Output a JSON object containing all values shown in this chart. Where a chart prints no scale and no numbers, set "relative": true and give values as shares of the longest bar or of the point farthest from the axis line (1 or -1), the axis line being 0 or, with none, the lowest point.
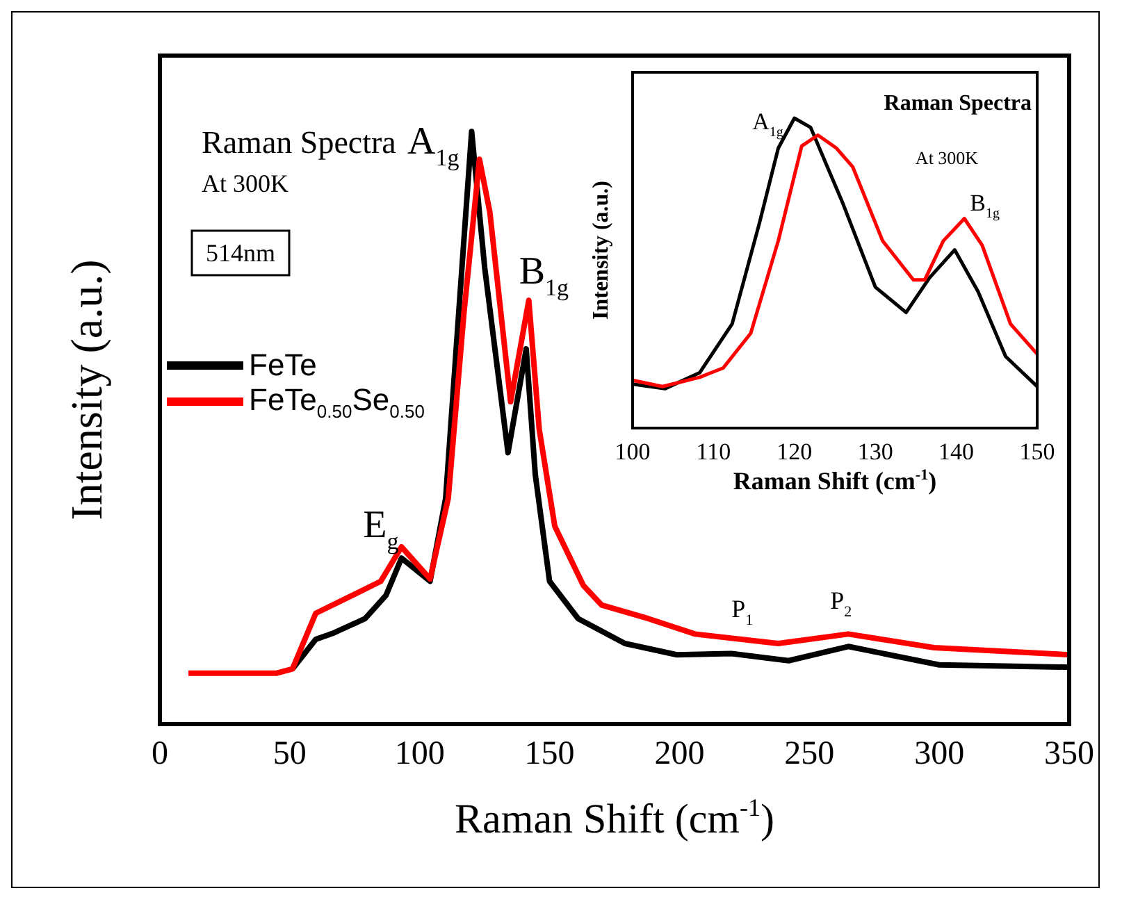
{
  "chart_data": [
    {
      "type": "line",
      "relative": true,
      "xlabel": "Raman Shift (cm$^{-1}$)",
      "ylabel": "Intensity (a.u.)",
      "xlim": [
        0,
        350
      ],
      "xticks": [
        0,
        50,
        100,
        150,
        200,
        250,
        300,
        350
      ],
      "legend": "left",
      "annotations": [
        "Raman Spectra",
        "At 300K",
        "514nm",
        {
          "text": "A$_{1g}$",
          "x": 120,
          "y": 1
        },
        {
          "text": "B$_{1g}$",
          "x": 142,
          "y": 0.715
        },
        {
          "text": "E$_{g}$",
          "x": 93,
          "y": 0.299
        },
        {
          "text": "P$_{1}$",
          "x": 220,
          "y": 0.15
        },
        {
          "text": "P$_{2}$",
          "x": 265,
          "y": 0.152
        }
      ],
      "series": [
        {
          "name": "FeTe",
          "color": "#000000",
          "x": [
            51,
            60,
            67,
            79,
            87,
            93,
            104,
            110,
            115,
            120,
            125,
            134,
            141,
            144.5,
            150,
            161,
            179,
            199,
            220,
            242,
            265,
            300,
            350
          ],
          "values": [
            0.093,
            0.143,
            0.154,
            0.178,
            0.217,
            0.28,
            0.241,
            0.381,
            0.692,
            1,
            0.771,
            0.458,
            0.633,
            0.421,
            0.241,
            0.178,
            0.136,
            0.117,
            0.119,
            0.107,
            0.131,
            0.1,
            0.096
          ]
        },
        {
          "name": "FeTe$_{0.50}$Se$_{0.50}$",
          "color": "#ff0000",
          "x": [
            11,
            45,
            51,
            60,
            74,
            85,
            93,
            104,
            111,
            117,
            123,
            127,
            135,
            142,
            146,
            152,
            163,
            170,
            188,
            206,
            238,
            265,
            298,
            350
          ],
          "values": [
            0.086,
            0.086,
            0.093,
            0.187,
            0.217,
            0.241,
            0.299,
            0.245,
            0.381,
            0.692,
            0.953,
            0.864,
            0.544,
            0.715,
            0.498,
            0.334,
            0.234,
            0.201,
            0.178,
            0.152,
            0.136,
            0.152,
            0.129,
            0.117
          ]
        }
      ]
    },
    {
      "type": "line",
      "relative": true,
      "xlabel": "Raman Shift (cm$^{-1}$)",
      "ylabel": "Intensity (a.u.)",
      "xlim": [
        100,
        150
      ],
      "xticks": [
        100,
        110,
        120,
        130,
        140,
        150
      ],
      "annotations": [
        "Raman Spectra",
        "At 300K",
        {
          "text": "A$_{1g}$",
          "x": 120,
          "y": 1
        },
        {
          "text": "B$_{1g}$",
          "x": 141,
          "y": 0.676
        }
      ],
      "series": [
        {
          "color": "#000000",
          "x": [
            100,
            104,
            108.3,
            112.3,
            115.7,
            118,
            120,
            122,
            126,
            130,
            133.8,
            136.7,
            139.8,
            142.7,
            146.1,
            150
          ],
          "values": [
            0.142,
            0.127,
            0.179,
            0.336,
            0.664,
            0.903,
            1,
            0.97,
            0.724,
            0.455,
            0.373,
            0.485,
            0.575,
            0.44,
            0.231,
            0.134
          ]
        },
        {
          "color": "#ff0000",
          "x": [
            100,
            103.7,
            108.3,
            111.2,
            114.6,
            118,
            120.9,
            122.9,
            125.2,
            127.2,
            130.9,
            134.7,
            136.1,
            138.4,
            141,
            143.2,
            146.7,
            150
          ],
          "values": [
            0.154,
            0.134,
            0.164,
            0.194,
            0.306,
            0.604,
            0.91,
            0.945,
            0.903,
            0.843,
            0.604,
            0.478,
            0.478,
            0.604,
            0.676,
            0.59,
            0.336,
            0.239
          ]
        }
      ]
    }
  ]
}
